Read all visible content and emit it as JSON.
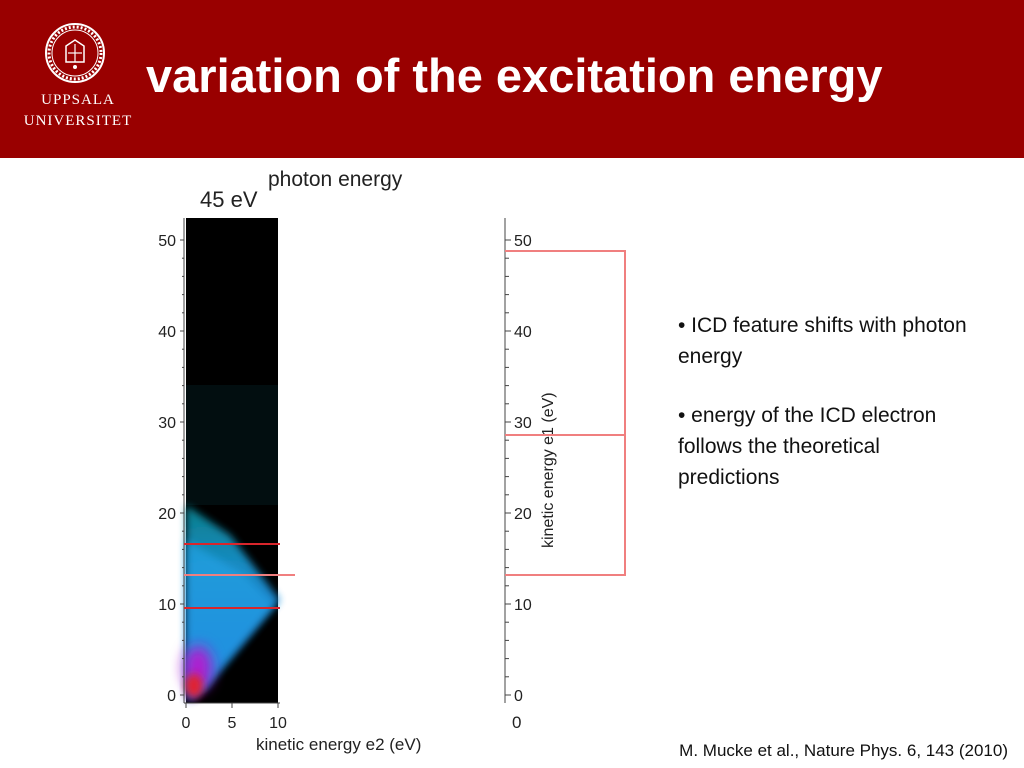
{
  "header": {
    "title": "variation of the excitation energy",
    "logo_line1": "UPPSALA",
    "logo_line2": "UNIVERSITET",
    "background": "#990000"
  },
  "figure": {
    "caption_top": "photon energy",
    "panel_label": "45 eV",
    "x_axis_label": "kinetic energy e2 (eV)",
    "x_ticks": [
      "0",
      "5",
      "10"
    ],
    "y_ticks": [
      "0",
      "10",
      "20",
      "30",
      "40",
      "50"
    ],
    "right_axis_label": "kinetic energy e1 (eV)",
    "right_y_ticks": [
      "0",
      "10",
      "20",
      "30",
      "40",
      "50"
    ],
    "right_x_tick": "0",
    "marker_color": "#d9262c"
  },
  "bullets": [
    "• ICD feature shifts with photon energy",
    "• energy of the ICD electron follows the theoretical predictions"
  ],
  "citation": "M. Mucke et al., Nature Phys. 6, 143 (2010)"
}
